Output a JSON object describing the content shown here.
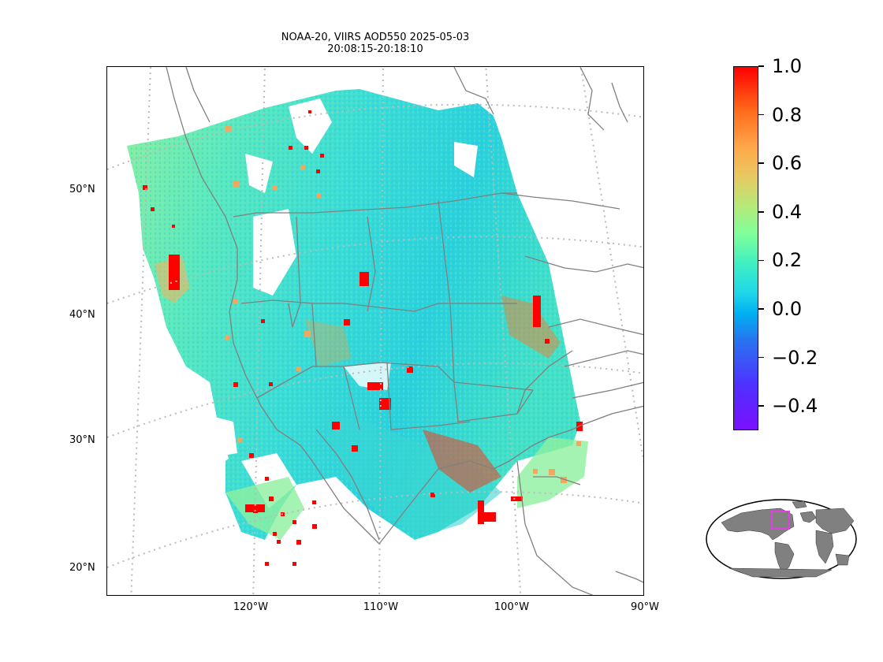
{
  "title": {
    "line1": "NOAA-20, VIIRS AOD550 2025-05-03",
    "line2": "20:08:15-20:18:10"
  },
  "map": {
    "projection": "lambert-conformal",
    "gridlines": "dotted",
    "lat_labels": [
      "50°N",
      "40°N",
      "30°N",
      "20°N"
    ],
    "lon_labels": [
      "120°W",
      "110°W",
      "100°W",
      "90°W"
    ],
    "coastline_color": "#808080",
    "missing_high_color": "#ff0000"
  },
  "colorbar": {
    "colormap": "rainbow",
    "range": [
      -0.5,
      1.0
    ],
    "ticks": [
      "1.0",
      "0.8",
      "0.6",
      "0.4",
      "0.2",
      "0.0",
      "−0.2",
      "−0.4"
    ]
  },
  "inset": {
    "type": "world-locator",
    "land_color": "#808080",
    "box_color": "#e040e0"
  }
}
